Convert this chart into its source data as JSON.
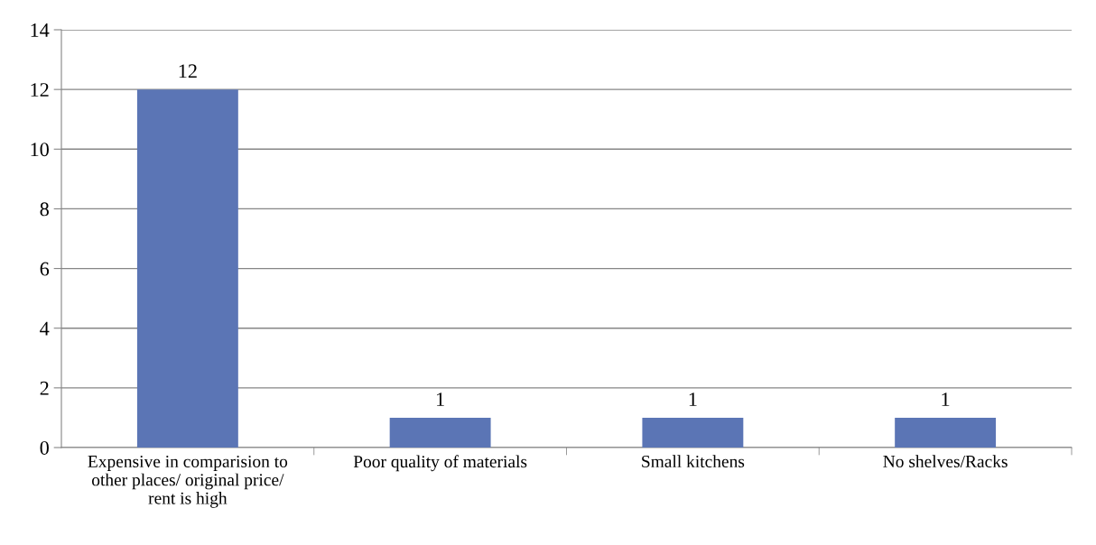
{
  "chart_data": {
    "type": "bar",
    "categories": [
      "Expensive in comparision to other places/ original price/ rent is high",
      "Poor quality of materials",
      "Small kitchens",
      "No shelves/Racks"
    ],
    "values": [
      12,
      1,
      1,
      1
    ],
    "color": "#5b75b5",
    "ylim": [
      0,
      14
    ],
    "yticks": [
      0,
      2,
      4,
      6,
      8,
      10,
      12,
      14
    ],
    "grid": "y",
    "data_labels": true
  }
}
